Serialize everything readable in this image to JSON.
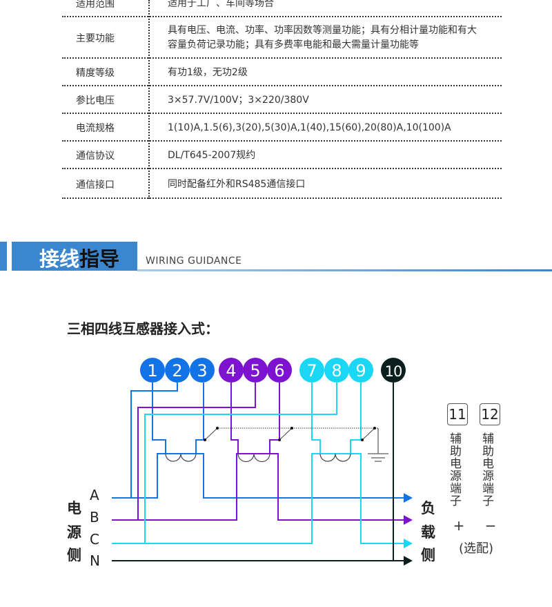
{
  "spec_table": [
    {
      "label": "适用范围",
      "value": "适用于工厂、车间等场合"
    },
    {
      "label": "主要功能",
      "value": "具有电压、电流、功率、功率因数等测量功能；具有分相计量功能和有大",
      "value2": "容量负荷记录功能；具有多费率电能和最大需量计量功能等"
    },
    {
      "label": "精度等级",
      "value": "有功1级，无功2级"
    },
    {
      "label": "参比电压",
      "value": "3×57.7V/100V；3×220/380V"
    },
    {
      "label": "电流规格",
      "value": "1(10)A,1.5(6),3(20),5(30)A,1(40),15(60),20(80)A,10(100)A"
    },
    {
      "label": "通信协议",
      "value": "DL/T645-2007规约"
    },
    {
      "label": "通信接口",
      "value": "同时配备红外和RS485通信接口"
    }
  ],
  "section": {
    "title_white": "接线",
    "title_black": "指导",
    "subtitle": "WIRING GUIDANCE",
    "accent": "#3a87d0"
  },
  "diagram": {
    "title": "三相四线互感器接入式：",
    "terminals": [
      "1",
      "2",
      "3",
      "4",
      "5",
      "6",
      "7",
      "8",
      "9",
      "10"
    ],
    "terminal_colors": {
      "A": "#1273e6",
      "B": "#7d12d0",
      "C": "#1ad8f5",
      "N": "#0c1f1f"
    },
    "phases": [
      "A",
      "B",
      "C",
      "N"
    ],
    "source_side": [
      "电",
      "源",
      "侧"
    ],
    "load_side": [
      "负",
      "载",
      "侧"
    ],
    "aux_terminals": [
      {
        "num": "11",
        "label": "辅助电源端子",
        "sign": "+"
      },
      {
        "num": "12",
        "label": "辅助电源端子",
        "sign": "−"
      }
    ],
    "aux_note": "(选配)"
  }
}
